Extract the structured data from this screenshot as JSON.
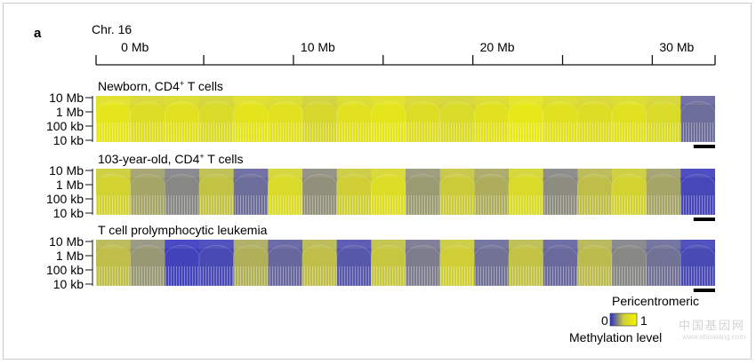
{
  "chart_data": {
    "type": "heatmap",
    "panel_letter": "a",
    "chromosome_label": "Chr. 16",
    "x_ticks": [
      "0 Mb",
      "10 Mb",
      "20 Mb",
      "30 Mb"
    ],
    "xlim_mb": [
      -1,
      33.5
    ],
    "y_ticks": [
      "10 Mb",
      "1 Mb",
      "100 kb",
      "10 kb"
    ],
    "y_scale": "log",
    "pericentromeric_region_mb": [
      32.4,
      35.2
    ],
    "pericentromeric_label": "Pericentromeric",
    "colorbar": {
      "min_label": "0",
      "max_label": "1",
      "title": "Methylation level",
      "colors": [
        "#2a2ad0",
        "#cfcf3a",
        "#f4f400"
      ]
    },
    "panels": [
      {
        "title_main": "Newborn, CD4",
        "title_sup": "+",
        "title_rest": " T cells",
        "methylation_by_segment": [
          0.93,
          0.88,
          0.9,
          0.86,
          0.92,
          0.9,
          0.84,
          0.9,
          0.93,
          0.88,
          0.86,
          0.9,
          0.94,
          0.9,
          0.88,
          0.9,
          0.86,
          0.28
        ]
      },
      {
        "title_main": "103-year-old, CD4",
        "title_sup": "+",
        "title_rest": " T cells",
        "methylation_by_segment": [
          0.82,
          0.55,
          0.4,
          0.72,
          0.28,
          0.86,
          0.45,
          0.8,
          0.88,
          0.5,
          0.78,
          0.6,
          0.86,
          0.42,
          0.7,
          0.82,
          0.55,
          0.1
        ]
      },
      {
        "title_main": "T cell prolymphocytic leukemia",
        "title_sup": "",
        "title_rest": "",
        "methylation_by_segment": [
          0.7,
          0.48,
          0.08,
          0.12,
          0.62,
          0.25,
          0.7,
          0.18,
          0.75,
          0.35,
          0.8,
          0.3,
          0.72,
          0.26,
          0.68,
          0.4,
          0.3,
          0.12
        ]
      }
    ]
  },
  "watermark": {
    "line1": "中国基因网",
    "line2": "www.ebiowang.com"
  }
}
